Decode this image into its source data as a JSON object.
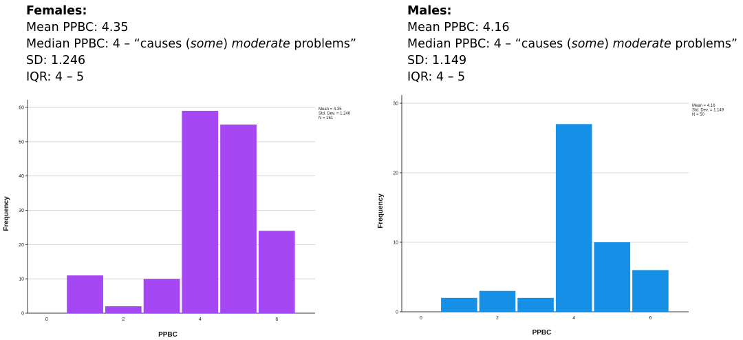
{
  "panels": [
    {
      "header": "Females:",
      "mean_line": "Mean PPBC: 4.35",
      "median_prefix": "Median PPBC: 4 – “causes (",
      "median_italic1": "some",
      "median_mid": ") ",
      "median_italic2": "moderate",
      "median_suffix": " problems”",
      "sd_line": "SD: 1.246",
      "iqr_line": "IQR: 4 – 5"
    },
    {
      "header": "Males:",
      "mean_line": "Mean PPBC: 4.16",
      "median_prefix": "Median PPBC: 4 – “causes (",
      "median_italic1": "some",
      "median_mid": ") ",
      "median_italic2": "moderate",
      "median_suffix": " problems”",
      "sd_line": "SD: 1.149",
      "iqr_line": "IQR: 4 – 5"
    }
  ],
  "chart_data": [
    {
      "type": "bar",
      "x": [
        1,
        2,
        3,
        4,
        5,
        6
      ],
      "values": [
        11,
        2,
        10,
        59,
        55,
        24
      ],
      "color": "#A547F2",
      "xlabel": "PPBC",
      "ylabel": "Frequency",
      "xticks": [
        0,
        2,
        4,
        6
      ],
      "yticks": [
        0,
        10,
        20,
        30,
        40,
        50,
        60
      ],
      "xlim": [
        -0.5,
        7
      ],
      "ylim": [
        0,
        60
      ],
      "grid": true,
      "legend": [
        "Mean = 4.35",
        "Std. Dev. = 1.246",
        "N = 161"
      ],
      "legend_position": "top-right"
    },
    {
      "type": "bar",
      "x": [
        1,
        2,
        3,
        4,
        5,
        6
      ],
      "values": [
        2,
        3,
        2,
        27,
        10,
        6
      ],
      "color": "#1590E6",
      "xlabel": "PPBC",
      "ylabel": "Frequency",
      "xticks": [
        0,
        2,
        4,
        6
      ],
      "yticks": [
        0,
        10,
        20,
        30
      ],
      "xlim": [
        -0.5,
        7
      ],
      "ylim": [
        0,
        30
      ],
      "grid": true,
      "legend": [
        "Mean = 4.16",
        "Std. Dev. = 1.149",
        "N = 50"
      ],
      "legend_position": "top-right"
    }
  ]
}
